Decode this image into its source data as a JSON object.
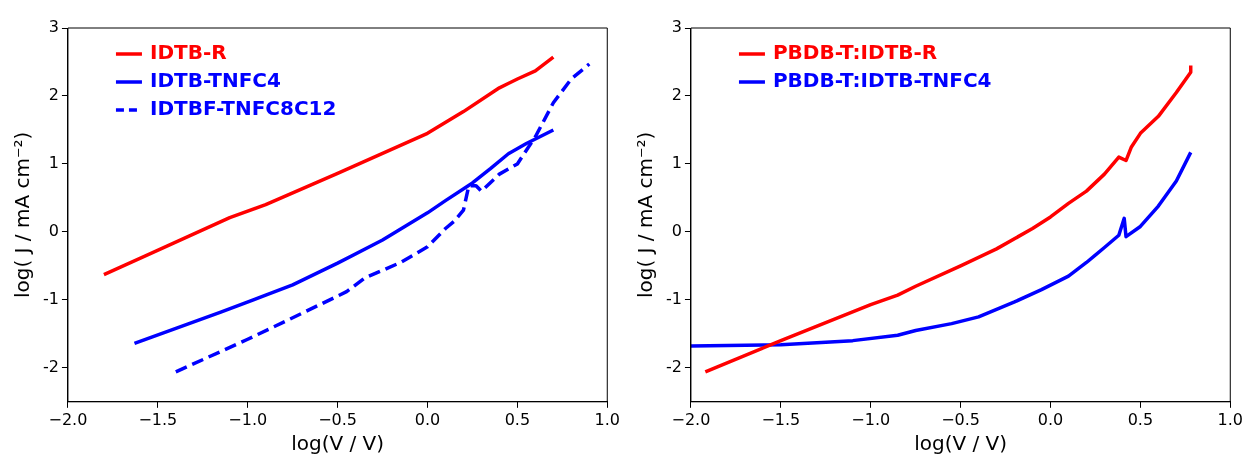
{
  "chart_data": [
    {
      "type": "line",
      "xlabel": "log(V / V)",
      "ylabel": "log( J / mA cm⁻²)",
      "xlim": [
        -2.0,
        1.0
      ],
      "xticks": [
        {
          "value": -2,
          "label": "−2.0"
        },
        {
          "value": -1.5,
          "label": "−1.5"
        },
        {
          "value": -1,
          "label": "−1.0"
        },
        {
          "value": -0.5,
          "label": "−0.5"
        },
        {
          "value": 0,
          "label": "0.0"
        },
        0.5,
        {
          "value": 1,
          "label": "1.0"
        }
      ],
      "ylim": [
        -2.5,
        3
      ],
      "yticks": [
        -2,
        -1,
        0,
        1,
        2,
        3
      ],
      "grid": false,
      "legend": "top left",
      "marker": "none",
      "series": [
        {
          "name": "IDTB-R",
          "color": "#ff0000",
          "line_style": "solid",
          "x": [
            -1.8,
            -1.1,
            -0.9,
            -0.5,
            0,
            0.2,
            0.4,
            0.5,
            0.6,
            0.7
          ],
          "values": [
            -0.63,
            0.21,
            0.4,
            0.86,
            1.45,
            1.77,
            2.12,
            2.25,
            2.37,
            2.57
          ]
        },
        {
          "name": "IDTB-TNFC4",
          "color": "#0000ff",
          "line_style": "solid",
          "x": [
            -1.63,
            -1.15,
            -0.9,
            -0.75,
            -0.5,
            -0.25,
            0,
            0.1,
            0.25,
            0.35,
            0.45,
            0.55,
            0.7
          ],
          "values": [
            -1.64,
            -1.18,
            -0.93,
            -0.78,
            -0.46,
            -0.12,
            0.28,
            0.46,
            0.72,
            0.93,
            1.15,
            1.3,
            1.5
          ]
        },
        {
          "name": "IDTBF-TNFC8C12",
          "color": "#0000ff",
          "line_style": "dashed",
          "x": [
            -1.4,
            -1.0,
            -0.7,
            -0.45,
            -0.35,
            -0.15,
            0,
            0.1,
            0.15,
            0.2,
            0.23,
            0.27,
            0.3,
            0.4,
            0.5,
            0.6,
            0.7,
            0.8,
            0.9
          ],
          "values": [
            -2.06,
            -1.58,
            -1.2,
            -0.88,
            -0.68,
            -0.45,
            -0.22,
            0.05,
            0.16,
            0.32,
            0.68,
            0.68,
            0.6,
            0.85,
            1.0,
            1.4,
            1.9,
            2.25,
            2.47
          ]
        }
      ]
    },
    {
      "type": "line",
      "xlabel": "log(V / V)",
      "ylabel": "log( J / mA cm⁻²)",
      "xlim": [
        -2.0,
        1.0
      ],
      "xticks": [
        {
          "value": -2,
          "label": "−2.0"
        },
        {
          "value": -1.5,
          "label": "−1.5"
        },
        {
          "value": -1,
          "label": "−1.0"
        },
        {
          "value": -0.5,
          "label": "−0.5"
        },
        {
          "value": 0,
          "label": "0.0"
        },
        0.5,
        {
          "value": 1,
          "label": "1.0"
        }
      ],
      "ylim": [
        -2.5,
        3
      ],
      "yticks": [
        -2,
        -1,
        0,
        1,
        2,
        3
      ],
      "grid": false,
      "legend": "top left",
      "marker": "none",
      "series": [
        {
          "name": "PBDB-T:IDTB-R",
          "color": "#ff0000",
          "line_style": "solid",
          "x": [
            -1.92,
            -1.5,
            -1.0,
            -0.85,
            -0.75,
            -0.5,
            -0.3,
            -0.1,
            0.0,
            0.1,
            0.2,
            0.3,
            0.38,
            0.42,
            0.45,
            0.5,
            0.6,
            0.7,
            0.78,
            0.78
          ],
          "values": [
            -2.06,
            -1.6,
            -1.07,
            -0.93,
            -0.8,
            -0.5,
            -0.25,
            0.05,
            0.22,
            0.42,
            0.6,
            0.85,
            1.1,
            1.05,
            1.25,
            1.45,
            1.7,
            2.05,
            2.35,
            2.45
          ]
        },
        {
          "name": "PBDB-T:IDTB-TNFC4",
          "color": "#0000ff",
          "line_style": "solid",
          "x": [
            -2.0,
            -1.5,
            -1.1,
            -0.85,
            -0.75,
            -0.55,
            -0.4,
            -0.2,
            -0.05,
            0.1,
            0.2,
            0.3,
            0.38,
            0.41,
            0.42,
            0.5,
            0.6,
            0.7,
            0.78
          ],
          "values": [
            -1.68,
            -1.66,
            -1.6,
            -1.52,
            -1.45,
            -1.35,
            -1.25,
            -1.03,
            -0.85,
            -0.65,
            -0.45,
            -0.23,
            -0.05,
            0.2,
            -0.07,
            0.08,
            0.38,
            0.75,
            1.17
          ]
        }
      ]
    }
  ]
}
